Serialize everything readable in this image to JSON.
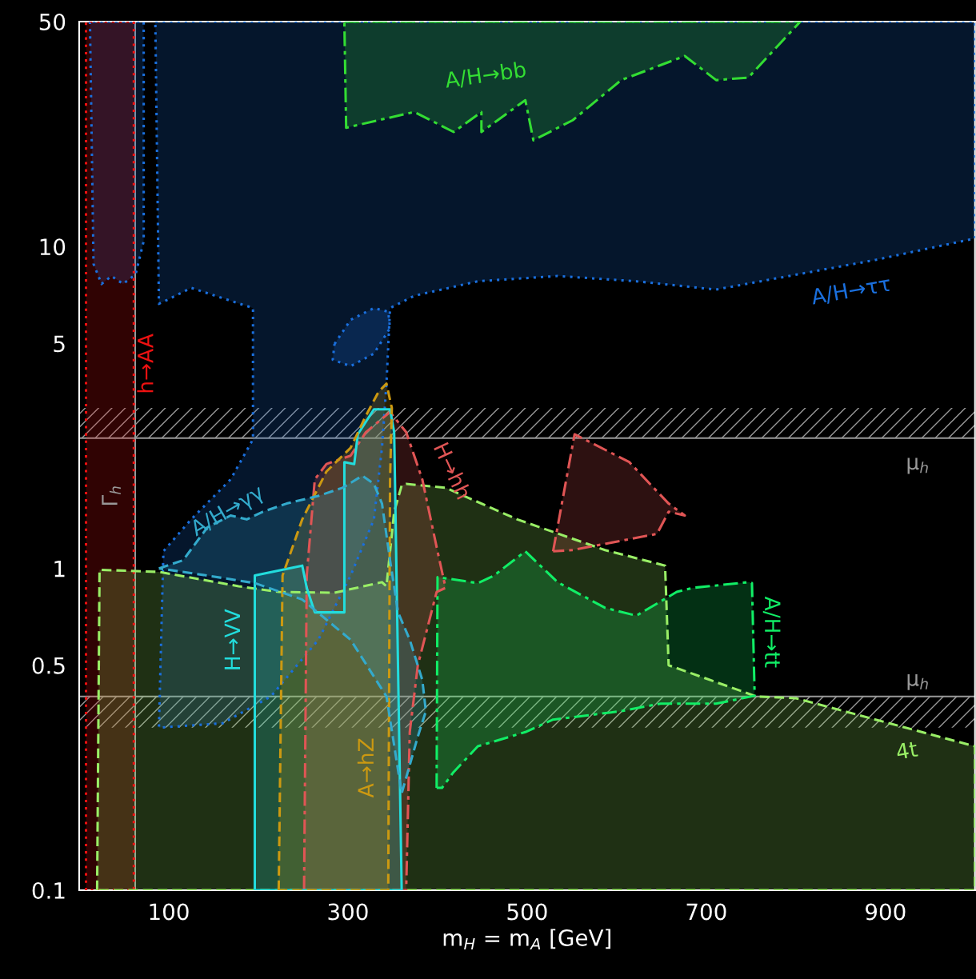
{
  "chart_data": {
    "type": "area",
    "xlabel": "m$_{H}$ = m$_{A}$ [GeV]",
    "xlim": [
      0,
      1000
    ],
    "xticks": [
      100,
      300,
      500,
      700,
      900
    ],
    "ylim": [
      0.1,
      50
    ],
    "yticks": [
      0.1,
      0.5,
      1,
      5,
      10,
      50
    ],
    "log": "y",
    "grid": false,
    "legend": false,
    "series": [
      {
        "color": "#1a6fdd",
        "line_style": "dotted",
        "x": [
          85,
          1000,
          1000,
          889,
          711,
          622,
          534,
          445,
          374,
          347,
          343,
          338,
          329,
          303,
          267,
          214,
          160,
          89,
          94,
          125,
          169,
          194,
          194,
          125,
          98,
          89
        ],
        "values": [
          50,
          50,
          10.6,
          9.09,
          7.35,
          7.8,
          8.1,
          7.8,
          7.03,
          6.44,
          3.75,
          2.37,
          1.42,
          0.95,
          0.6,
          0.4,
          0.33,
          0.32,
          1.13,
          1.42,
          1.89,
          2.52,
          6.44,
          7.44,
          6.82,
          6.64
        ]
      },
      {
        "color": "#1a6fdd",
        "line_style": "dotted",
        "x": [
          12,
          16,
          25,
          36,
          49,
          63,
          72,
          72
        ],
        "values": [
          50,
          8.83,
          7.65,
          8.1,
          7.65,
          8.2,
          10.4,
          50
        ]
      },
      {
        "color": "#1a6fdd",
        "line_style": "dotted",
        "x": [
          285,
          303,
          329,
          345,
          347,
          329,
          303,
          283
        ],
        "values": [
          4.98,
          5.92,
          6.44,
          6.27,
          5.58,
          4.65,
          4.25,
          4.45
        ]
      },
      {
        "color": "#33dd33",
        "line_style": "dashdot",
        "x": [
          296,
          805,
          747,
          711,
          676,
          605,
          551,
          507,
          498,
          449,
          449,
          418,
          374,
          298
        ],
        "values": [
          50,
          50,
          33.5,
          32.9,
          39.1,
          32.9,
          24.7,
          21.4,
          28.5,
          22.7,
          26.2,
          22.7,
          26.2,
          23.4
        ]
      },
      {
        "color": "#ee1111",
        "line_style": "dotted",
        "x": [
          7.6,
          7.6,
          61,
          61
        ],
        "values": [
          0.1,
          50,
          50,
          0.1
        ]
      },
      {
        "color": "#99ee66",
        "line_style": "dashed",
        "x": [
          20,
          22.7,
          89,
          178,
          222.7,
          285,
          338,
          343,
          351.6,
          360,
          365,
          409,
          489,
          587,
          654,
          658,
          756,
          800,
          889,
          1000,
          1000
        ],
        "values": [
          0.1,
          0.99,
          0.975,
          0.88,
          0.845,
          0.84,
          0.906,
          0.88,
          1.5,
          1.81,
          1.83,
          1.78,
          1.42,
          1.14,
          1.02,
          0.5,
          0.4,
          0.395,
          0.339,
          0.28,
          0.1
        ]
      },
      {
        "color": "#11ee66",
        "line_style": "dashdot",
        "x": [
          399,
          400,
          445,
          463,
          498,
          534,
          587,
          622,
          667,
          685,
          747,
          751,
          754,
          711,
          649,
          605,
          529,
          498,
          445,
          418,
          405
        ],
        "values": [
          0.208,
          0.94,
          0.9,
          0.95,
          1.13,
          0.906,
          0.754,
          0.713,
          0.845,
          0.87,
          0.906,
          0.9,
          0.402,
          0.38,
          0.38,
          0.36,
          0.339,
          0.31,
          0.28,
          0.233,
          0.208
        ]
      },
      {
        "color": "#e05555",
        "line_style": "dashdot",
        "x": [
          251,
          254,
          263,
          276,
          303,
          320,
          347,
          365,
          383,
          400,
          409,
          399,
          378,
          369,
          365
        ],
        "values": [
          0.1,
          0.95,
          1.89,
          2.11,
          2.24,
          2.65,
          3.06,
          2.65,
          1.89,
          1.13,
          0.87,
          0.845,
          0.5,
          0.31,
          0.1
        ]
      },
      {
        "color": "#e05555",
        "line_style": "dashdot",
        "x": [
          529,
          553,
          614,
          658,
          676,
          658,
          645,
          551
        ],
        "values": [
          1.13,
          2.61,
          2.14,
          1.59,
          1.46,
          1.5,
          1.28,
          1.14
        ]
      },
      {
        "color": "#22dddd",
        "line_style": "solid",
        "x": [
          196,
          196,
          249,
          254,
          263,
          296,
          296,
          307,
          311,
          329,
          347,
          351.6,
          360
        ],
        "values": [
          0.1,
          0.95,
          1.02,
          0.87,
          0.73,
          0.73,
          2.14,
          2.11,
          2.61,
          3.12,
          3.12,
          2.65,
          0.1
        ]
      },
      {
        "color": "#cc9911",
        "line_style": "dashed",
        "x": [
          222.7,
          227,
          249,
          276,
          303,
          320,
          334,
          343,
          349,
          347,
          345
        ],
        "values": [
          0.1,
          0.95,
          1.42,
          2.0,
          2.37,
          2.98,
          3.53,
          3.75,
          3.15,
          1.89,
          0.1
        ]
      },
      {
        "color": "#33aacc",
        "line_style": "dashed",
        "x": [
          89,
          116,
          143,
          169,
          187,
          205,
          231.5,
          267,
          294,
          316,
          329,
          338,
          347,
          356,
          369,
          383,
          387,
          378,
          360,
          343,
          303,
          249,
          196,
          143
        ],
        "values": [
          1.0,
          1.06,
          1.34,
          1.46,
          1.42,
          1.5,
          1.59,
          1.68,
          1.78,
          1.94,
          1.83,
          1.59,
          1.06,
          0.73,
          0.6,
          0.45,
          0.36,
          0.3,
          0.2,
          0.4,
          0.6,
          0.8,
          0.9,
          0.95
        ]
      }
    ],
    "ref_lines": [
      {
        "axis": "x",
        "value": 62.5,
        "color": "#999999"
      },
      {
        "axis": "y",
        "value": 2.54,
        "color": "#999999"
      },
      {
        "axis": "y",
        "value": 0.4,
        "color": "#999999"
      }
    ],
    "bands": [
      {
        "axis": "y",
        "from": 2.54,
        "to": 3.15,
        "color": "#999999"
      },
      {
        "axis": "y",
        "from": 0.32,
        "to": 0.4,
        "color": "#999999"
      }
    ],
    "annotations": [
      "A/H→bb",
      "A/H→ττ",
      "h→AA",
      "Γ$_{h}$",
      "A/H→γγ",
      "H→hh",
      "H→VV",
      "A→hZ",
      "A/H→tt",
      "4t",
      "μ$_{h}$",
      "μ$_{h}$"
    ]
  }
}
